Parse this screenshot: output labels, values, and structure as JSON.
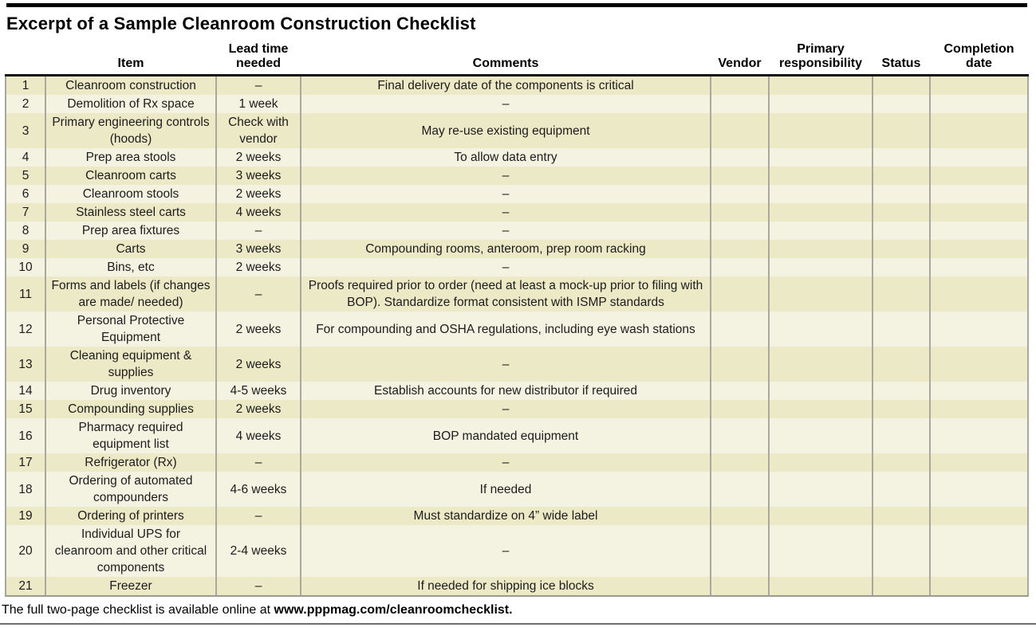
{
  "title": "Excerpt of a Sample Cleanroom Construction Checklist",
  "table": {
    "columns": [
      {
        "key": "num",
        "label": ""
      },
      {
        "key": "item",
        "label": "Item"
      },
      {
        "key": "lead",
        "label": "Lead time needed"
      },
      {
        "key": "comments",
        "label": "Comments"
      },
      {
        "key": "vendor",
        "label": "Vendor"
      },
      {
        "key": "primary",
        "label": "Primary responsibility"
      },
      {
        "key": "status",
        "label": "Status"
      },
      {
        "key": "completion",
        "label": "Completion date"
      }
    ],
    "empty_cell_keys": [
      "vendor",
      "primary",
      "status",
      "completion"
    ],
    "rows": [
      {
        "num": "1",
        "item": "Cleanroom construction",
        "lead": "–",
        "comments": "Final delivery date of the components is critical"
      },
      {
        "num": "2",
        "item": "Demolition of Rx space",
        "lead": "1 week",
        "comments": "–"
      },
      {
        "num": "3",
        "item": "Primary engineering controls (hoods)",
        "lead": "Check with vendor",
        "comments": "May re-use existing equipment"
      },
      {
        "num": "4",
        "item": "Prep area stools",
        "lead": "2 weeks",
        "comments": "To allow data entry"
      },
      {
        "num": "5",
        "item": "Cleanroom carts",
        "lead": "3 weeks",
        "comments": "–"
      },
      {
        "num": "6",
        "item": "Cleanroom stools",
        "lead": "2 weeks",
        "comments": "–"
      },
      {
        "num": "7",
        "item": "Stainless steel carts",
        "lead": "4 weeks",
        "comments": "–"
      },
      {
        "num": "8",
        "item": "Prep area fixtures",
        "lead": "–",
        "comments": "–"
      },
      {
        "num": "9",
        "item": "Carts",
        "lead": "3 weeks",
        "comments": "Compounding rooms, anteroom, prep room racking"
      },
      {
        "num": "10",
        "item": "Bins, etc",
        "lead": "2 weeks",
        "comments": "–"
      },
      {
        "num": "11",
        "item": "Forms and labels (if changes are made/ needed)",
        "lead": "–",
        "comments": "Proofs required prior to order (need at least a mock-up prior to filing with BOP). Standardize format consistent with ISMP standards"
      },
      {
        "num": "12",
        "item": "Personal Protective Equipment",
        "lead": "2 weeks",
        "comments": "For compounding and OSHA regulations, including eye wash stations"
      },
      {
        "num": "13",
        "item": "Cleaning equipment & supplies",
        "lead": "2 weeks",
        "comments": "–"
      },
      {
        "num": "14",
        "item": "Drug inventory",
        "lead": "4-5 weeks",
        "comments": "Establish accounts for new distributor if required"
      },
      {
        "num": "15",
        "item": "Compounding supplies",
        "lead": "2 weeks",
        "comments": "–"
      },
      {
        "num": "16",
        "item": "Pharmacy required equipment list",
        "lead": "4 weeks",
        "comments": "BOP mandated equipment"
      },
      {
        "num": "17",
        "item": "Refrigerator (Rx)",
        "lead": "–",
        "comments": "–"
      },
      {
        "num": "18",
        "item": "Ordering of automated compounders",
        "lead": "4-6 weeks",
        "comments": "If needed"
      },
      {
        "num": "19",
        "item": "Ordering of printers",
        "lead": "–",
        "comments": "Must standardize on 4” wide label"
      },
      {
        "num": "20",
        "item": "Individual UPS for cleanroom and other critical components",
        "lead": "2-4 weeks",
        "comments": "–"
      },
      {
        "num": "21",
        "item": "Freezer",
        "lead": "–",
        "comments": "If needed for shipping ice blocks"
      }
    ]
  },
  "footer": {
    "text_regular": "The full two-page checklist is available online at ",
    "text_bold": "www.pppmag.com/cleanroomchecklist."
  },
  "colors": {
    "row_dark": "#ece9c6",
    "row_light": "#f4f2e1",
    "grid": "#a9a89e",
    "header_rule": "#111111",
    "table_bottom": "#9b9a8d",
    "footer_rule": "#6f6f6f",
    "text": "#1c1c1c"
  }
}
